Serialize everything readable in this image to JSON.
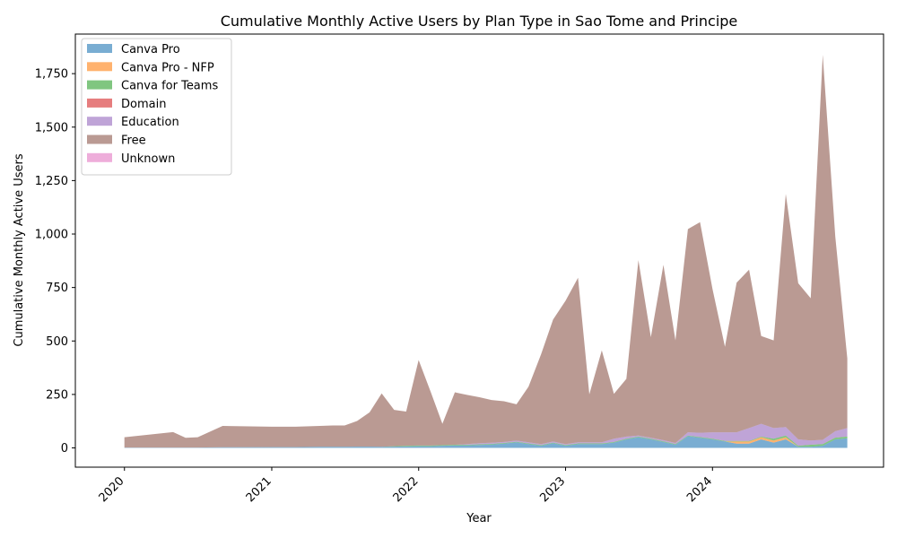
{
  "chart_data": {
    "type": "area",
    "stacked": true,
    "title": "Cumulative Monthly Active Users by Plan Type in Sao Tome and Principe",
    "xlabel": "Year",
    "ylabel": "Cumulative Monthly Active Users",
    "xlim": [
      "2019-09-01",
      "2025-03-01"
    ],
    "ylim": [
      -90,
      1935
    ],
    "x_ticks": [
      "2020",
      "2021",
      "2022",
      "2023",
      "2024"
    ],
    "y_ticks": [
      "0",
      "250",
      "500",
      "750",
      "1,000",
      "1,250",
      "1,500",
      "1,750"
    ],
    "legend_position": "upper left",
    "grid": false,
    "dates": [
      "2020-01",
      "2020-05",
      "2020-06",
      "2020-07",
      "2020-09",
      "2021-01",
      "2021-03",
      "2021-05",
      "2021-06",
      "2021-07",
      "2021-08",
      "2021-09",
      "2021-10",
      "2021-11",
      "2021-12",
      "2022-01",
      "2022-02",
      "2022-03",
      "2022-04",
      "2022-05",
      "2022-06",
      "2022-07",
      "2022-08",
      "2022-09",
      "2022-10",
      "2022-11",
      "2022-12",
      "2023-01",
      "2023-02",
      "2023-03",
      "2023-04",
      "2023-05",
      "2023-06",
      "2023-07",
      "2023-08",
      "2023-09",
      "2023-10",
      "2023-11",
      "2023-12",
      "2024-01",
      "2024-02",
      "2024-03",
      "2024-04",
      "2024-05",
      "2024-06",
      "2024-07",
      "2024-08",
      "2024-09",
      "2024-10",
      "2024-11",
      "2024-12"
    ],
    "series": [
      {
        "name": "Canva Pro",
        "color": "#1f77b4",
        "values": [
          2,
          2,
          2,
          2,
          3,
          4,
          4,
          5,
          5,
          5,
          6,
          6,
          5,
          6,
          7,
          8,
          8,
          10,
          12,
          12,
          14,
          16,
          20,
          26,
          18,
          10,
          22,
          10,
          18,
          18,
          18,
          25,
          40,
          50,
          40,
          28,
          15,
          55,
          48,
          40,
          30,
          20,
          20,
          40,
          25,
          40,
          5,
          5,
          10,
          40,
          45
        ]
      },
      {
        "name": "Canva Pro - NFP",
        "color": "#ff7f0e",
        "values": [
          0,
          0,
          0,
          0,
          0,
          0,
          0,
          0,
          0,
          0,
          0,
          0,
          0,
          0,
          0,
          0,
          0,
          0,
          0,
          0,
          0,
          0,
          0,
          0,
          0,
          0,
          0,
          0,
          0,
          0,
          0,
          0,
          0,
          0,
          0,
          0,
          0,
          0,
          0,
          0,
          0,
          10,
          10,
          10,
          10,
          10,
          0,
          0,
          0,
          0,
          0
        ]
      },
      {
        "name": "Canva for Teams",
        "color": "#2ca02c",
        "values": [
          0,
          0,
          0,
          0,
          0,
          0,
          0,
          0,
          0,
          0,
          0,
          0,
          0,
          2,
          3,
          3,
          3,
          3,
          3,
          3,
          3,
          3,
          3,
          3,
          3,
          3,
          3,
          3,
          3,
          3,
          3,
          3,
          3,
          3,
          3,
          3,
          3,
          3,
          3,
          3,
          3,
          3,
          3,
          3,
          8,
          8,
          5,
          10,
          8,
          8,
          8
        ]
      },
      {
        "name": "Domain",
        "color": "#d62728",
        "values": [
          0,
          0,
          0,
          0,
          0,
          0,
          0,
          0,
          0,
          0,
          0,
          0,
          0,
          0,
          0,
          0,
          0,
          0,
          0,
          0,
          0,
          0,
          0,
          0,
          0,
          0,
          0,
          0,
          0,
          0,
          0,
          0,
          0,
          0,
          0,
          0,
          0,
          0,
          0,
          0,
          0,
          0,
          0,
          0,
          0,
          0,
          0,
          0,
          0,
          0,
          0
        ]
      },
      {
        "name": "Education",
        "color": "#9467bd",
        "values": [
          0,
          0,
          0,
          0,
          0,
          0,
          0,
          0,
          0,
          0,
          0,
          0,
          0,
          0,
          0,
          0,
          0,
          0,
          0,
          3,
          5,
          5,
          5,
          5,
          5,
          5,
          5,
          5,
          5,
          5,
          5,
          15,
          10,
          5,
          5,
          5,
          5,
          15,
          20,
          30,
          40,
          40,
          60,
          60,
          50,
          40,
          30,
          20,
          20,
          30,
          40
        ]
      },
      {
        "name": "Free",
        "color": "#8c564b",
        "values": [
          48,
          72,
          45,
          48,
          100,
          95,
          95,
          98,
          100,
          100,
          120,
          160,
          250,
          170,
          160,
          400,
          245,
          100,
          245,
          230,
          215,
          200,
          190,
          170,
          260,
          420,
          570,
          670,
          770,
          225,
          430,
          210,
          270,
          820,
          470,
          820,
          480,
          950,
          985,
          670,
          400,
          700,
          740,
          410,
          410,
          1090,
          730,
          665,
          1800,
          910,
          325
        ]
      },
      {
        "name": "Unknown",
        "color": "#e377c2",
        "values": [
          0,
          0,
          0,
          0,
          0,
          0,
          0,
          0,
          0,
          0,
          0,
          0,
          0,
          0,
          0,
          0,
          0,
          0,
          0,
          0,
          0,
          0,
          0,
          0,
          0,
          0,
          0,
          0,
          0,
          0,
          0,
          0,
          0,
          0,
          0,
          0,
          0,
          0,
          0,
          0,
          0,
          0,
          0,
          0,
          0,
          0,
          0,
          0,
          0,
          0,
          0
        ]
      }
    ]
  }
}
